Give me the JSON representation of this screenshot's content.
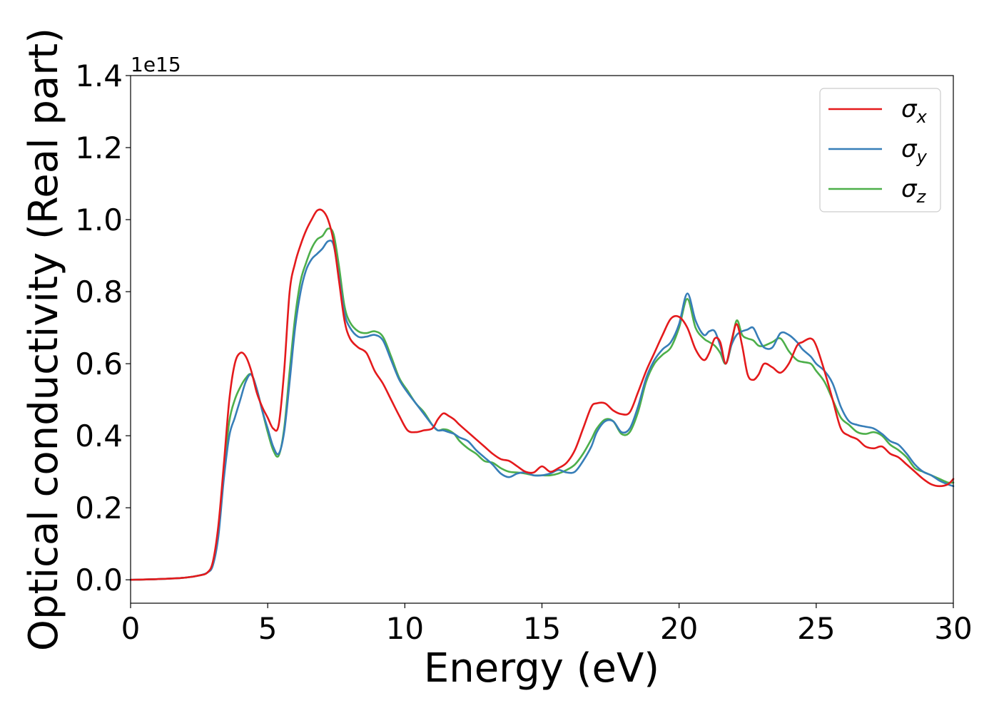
{
  "chart_data": {
    "type": "line",
    "xlabel": "Energy (eV)",
    "ylabel": "Optical conductivity (Real part)",
    "offset_label": "1e15",
    "y_scale_factor": 1000000000000000.0,
    "xlim": [
      0,
      30
    ],
    "ylim": [
      -0.065,
      1.4
    ],
    "xticks": [
      0,
      5,
      10,
      15,
      20,
      25,
      30
    ],
    "xtick_labels": [
      "0",
      "5",
      "10",
      "15",
      "20",
      "25",
      "30"
    ],
    "yticks": [
      0.0,
      0.2,
      0.4,
      0.6,
      0.8,
      1.0,
      1.2,
      1.4
    ],
    "ytick_labels": [
      "0.0",
      "0.2",
      "0.4",
      "0.6",
      "0.8",
      "1.0",
      "1.2",
      "1.4"
    ],
    "grid": false,
    "legend_position": "top-right",
    "series": [
      {
        "name": "σ",
        "subscript": "x",
        "color": "#e41a1c",
        "x": [
          0,
          1,
          2,
          2.5,
          2.8,
          3.0,
          3.2,
          3.4,
          3.6,
          3.8,
          4.0,
          4.2,
          4.4,
          4.6,
          4.8,
          5.0,
          5.2,
          5.4,
          5.6,
          5.8,
          6.0,
          6.2,
          6.4,
          6.6,
          6.8,
          7.0,
          7.2,
          7.4,
          7.6,
          7.8,
          8.0,
          8.3,
          8.6,
          8.9,
          9.2,
          9.5,
          9.8,
          10.1,
          10.4,
          10.7,
          11.0,
          11.2,
          11.4,
          11.6,
          11.8,
          12.0,
          12.3,
          12.6,
          12.9,
          13.2,
          13.5,
          13.8,
          14.1,
          14.4,
          14.7,
          15.0,
          15.3,
          15.6,
          15.9,
          16.2,
          16.5,
          16.8,
          17.0,
          17.3,
          17.6,
          17.9,
          18.2,
          18.5,
          18.8,
          19.1,
          19.4,
          19.7,
          20.0,
          20.3,
          20.6,
          20.9,
          21.1,
          21.3,
          21.5,
          21.7,
          21.9,
          22.1,
          22.3,
          22.5,
          22.7,
          22.9,
          23.1,
          23.4,
          23.7,
          24.0,
          24.3,
          24.5,
          24.8,
          25.0,
          25.3,
          25.6,
          25.9,
          26.2,
          26.5,
          26.8,
          27.1,
          27.4,
          27.7,
          28.0,
          28.3,
          28.6,
          28.9,
          29.2,
          29.5,
          29.8,
          30.0
        ],
        "y": [
          0,
          0.002,
          0.006,
          0.012,
          0.02,
          0.05,
          0.15,
          0.32,
          0.5,
          0.6,
          0.63,
          0.62,
          0.58,
          0.52,
          0.48,
          0.45,
          0.42,
          0.43,
          0.58,
          0.8,
          0.88,
          0.93,
          0.97,
          1.0,
          1.025,
          1.025,
          1.0,
          0.94,
          0.83,
          0.72,
          0.67,
          0.645,
          0.63,
          0.58,
          0.545,
          0.5,
          0.455,
          0.415,
          0.41,
          0.415,
          0.42,
          0.445,
          0.462,
          0.455,
          0.445,
          0.43,
          0.41,
          0.39,
          0.37,
          0.35,
          0.335,
          0.33,
          0.315,
          0.3,
          0.298,
          0.315,
          0.3,
          0.31,
          0.325,
          0.36,
          0.42,
          0.48,
          0.49,
          0.49,
          0.47,
          0.46,
          0.465,
          0.52,
          0.58,
          0.63,
          0.68,
          0.725,
          0.73,
          0.7,
          0.64,
          0.61,
          0.63,
          0.67,
          0.66,
          0.6,
          0.66,
          0.71,
          0.65,
          0.57,
          0.555,
          0.57,
          0.6,
          0.59,
          0.575,
          0.6,
          0.65,
          0.66,
          0.67,
          0.65,
          0.58,
          0.5,
          0.42,
          0.4,
          0.39,
          0.37,
          0.365,
          0.37,
          0.35,
          0.34,
          0.32,
          0.3,
          0.28,
          0.265,
          0.26,
          0.265,
          0.28
        ]
      },
      {
        "name": "σ",
        "subscript": "y",
        "color": "#377eb8",
        "x": [
          0,
          1,
          2,
          2.5,
          2.8,
          3.0,
          3.2,
          3.4,
          3.6,
          3.8,
          4.0,
          4.2,
          4.4,
          4.6,
          4.8,
          5.0,
          5.2,
          5.4,
          5.6,
          5.8,
          6.0,
          6.2,
          6.4,
          6.6,
          6.8,
          7.0,
          7.2,
          7.4,
          7.6,
          7.8,
          8.0,
          8.3,
          8.6,
          8.9,
          9.2,
          9.5,
          9.8,
          10.1,
          10.4,
          10.7,
          11.0,
          11.2,
          11.4,
          11.6,
          11.8,
          12.0,
          12.3,
          12.6,
          12.9,
          13.2,
          13.5,
          13.8,
          14.1,
          14.4,
          14.7,
          15.0,
          15.3,
          15.6,
          15.9,
          16.2,
          16.5,
          16.8,
          17.0,
          17.3,
          17.6,
          17.9,
          18.2,
          18.5,
          18.8,
          19.1,
          19.4,
          19.7,
          20.0,
          20.3,
          20.6,
          20.9,
          21.1,
          21.3,
          21.5,
          21.7,
          21.9,
          22.1,
          22.3,
          22.5,
          22.7,
          22.9,
          23.1,
          23.4,
          23.7,
          24.0,
          24.3,
          24.5,
          24.8,
          25.0,
          25.3,
          25.6,
          25.9,
          26.2,
          26.5,
          26.8,
          27.1,
          27.4,
          27.7,
          28.0,
          28.3,
          28.6,
          28.9,
          29.2,
          29.5,
          29.8,
          30.0
        ],
        "y": [
          0,
          0.002,
          0.006,
          0.012,
          0.02,
          0.04,
          0.12,
          0.28,
          0.4,
          0.45,
          0.5,
          0.55,
          0.57,
          0.53,
          0.47,
          0.42,
          0.37,
          0.35,
          0.41,
          0.55,
          0.7,
          0.8,
          0.86,
          0.89,
          0.905,
          0.92,
          0.94,
          0.93,
          0.84,
          0.74,
          0.7,
          0.675,
          0.675,
          0.68,
          0.665,
          0.61,
          0.555,
          0.52,
          0.49,
          0.46,
          0.43,
          0.415,
          0.415,
          0.41,
          0.405,
          0.395,
          0.385,
          0.36,
          0.34,
          0.32,
          0.295,
          0.285,
          0.295,
          0.298,
          0.29,
          0.29,
          0.295,
          0.305,
          0.298,
          0.3,
          0.33,
          0.37,
          0.41,
          0.44,
          0.44,
          0.41,
          0.42,
          0.48,
          0.56,
          0.61,
          0.64,
          0.66,
          0.71,
          0.795,
          0.72,
          0.68,
          0.69,
          0.69,
          0.65,
          0.6,
          0.65,
          0.68,
          0.69,
          0.695,
          0.7,
          0.67,
          0.645,
          0.645,
          0.685,
          0.68,
          0.66,
          0.64,
          0.62,
          0.6,
          0.58,
          0.545,
          0.48,
          0.44,
          0.43,
          0.425,
          0.42,
          0.405,
          0.385,
          0.375,
          0.35,
          0.32,
          0.3,
          0.29,
          0.275,
          0.265,
          0.26
        ]
      },
      {
        "name": "σ",
        "subscript": "z",
        "color": "#4daf4a",
        "x": [
          0,
          1,
          2,
          2.5,
          2.8,
          3.0,
          3.2,
          3.4,
          3.6,
          3.8,
          4.0,
          4.2,
          4.4,
          4.6,
          4.8,
          5.0,
          5.2,
          5.4,
          5.6,
          5.8,
          6.0,
          6.2,
          6.4,
          6.6,
          6.8,
          7.0,
          7.2,
          7.4,
          7.6,
          7.8,
          8.0,
          8.3,
          8.6,
          8.9,
          9.2,
          9.5,
          9.8,
          10.1,
          10.4,
          10.7,
          11.0,
          11.2,
          11.4,
          11.6,
          11.8,
          12.0,
          12.3,
          12.6,
          12.9,
          13.2,
          13.5,
          13.8,
          14.1,
          14.4,
          14.7,
          15.0,
          15.3,
          15.6,
          15.9,
          16.2,
          16.5,
          16.8,
          17.0,
          17.3,
          17.6,
          17.9,
          18.2,
          18.5,
          18.8,
          19.1,
          19.4,
          19.7,
          20.0,
          20.3,
          20.6,
          20.9,
          21.1,
          21.3,
          21.5,
          21.7,
          21.9,
          22.1,
          22.3,
          22.5,
          22.7,
          22.9,
          23.1,
          23.4,
          23.7,
          24.0,
          24.3,
          24.5,
          24.8,
          25.0,
          25.3,
          25.6,
          25.9,
          26.2,
          26.5,
          26.8,
          27.1,
          27.4,
          27.7,
          28.0,
          28.3,
          28.6,
          28.9,
          29.2,
          29.5,
          29.8,
          30.0
        ],
        "y": [
          0,
          0.002,
          0.006,
          0.012,
          0.02,
          0.045,
          0.14,
          0.3,
          0.44,
          0.5,
          0.535,
          0.56,
          0.57,
          0.53,
          0.47,
          0.41,
          0.36,
          0.345,
          0.42,
          0.58,
          0.73,
          0.83,
          0.88,
          0.92,
          0.945,
          0.955,
          0.975,
          0.96,
          0.87,
          0.76,
          0.715,
          0.69,
          0.685,
          0.69,
          0.675,
          0.62,
          0.56,
          0.525,
          0.49,
          0.465,
          0.43,
          0.415,
          0.418,
          0.415,
          0.405,
          0.385,
          0.365,
          0.35,
          0.33,
          0.325,
          0.31,
          0.3,
          0.298,
          0.295,
          0.29,
          0.29,
          0.29,
          0.295,
          0.305,
          0.32,
          0.35,
          0.39,
          0.42,
          0.445,
          0.44,
          0.405,
          0.41,
          0.465,
          0.55,
          0.6,
          0.625,
          0.645,
          0.7,
          0.78,
          0.7,
          0.67,
          0.66,
          0.65,
          0.63,
          0.6,
          0.65,
          0.72,
          0.68,
          0.67,
          0.665,
          0.65,
          0.65,
          0.66,
          0.67,
          0.635,
          0.61,
          0.605,
          0.6,
          0.58,
          0.55,
          0.5,
          0.45,
          0.43,
          0.41,
          0.405,
          0.41,
          0.4,
          0.375,
          0.36,
          0.34,
          0.31,
          0.3,
          0.29,
          0.28,
          0.27,
          0.27
        ]
      }
    ]
  }
}
